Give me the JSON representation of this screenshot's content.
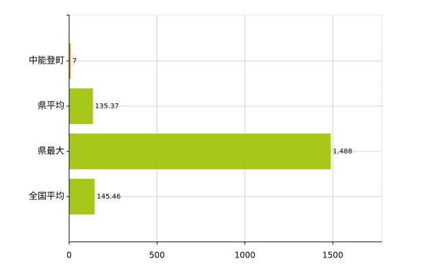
{
  "chart_data": {
    "type": "bar",
    "orientation": "horizontal",
    "categories": [
      "中能登町",
      "県平均",
      "県最大",
      "全国平均"
    ],
    "values": [
      7,
      135.37,
      1488,
      145.46
    ],
    "value_labels": [
      "7",
      "135.37",
      "1,488",
      "145.46"
    ],
    "colors": [
      "#e07a10",
      "#a5c81a",
      "#a5c81a",
      "#a5c81a"
    ],
    "xlim": [
      0,
      1780
    ],
    "xticks": [
      0,
      500,
      1000,
      1500
    ],
    "grid": true
  }
}
